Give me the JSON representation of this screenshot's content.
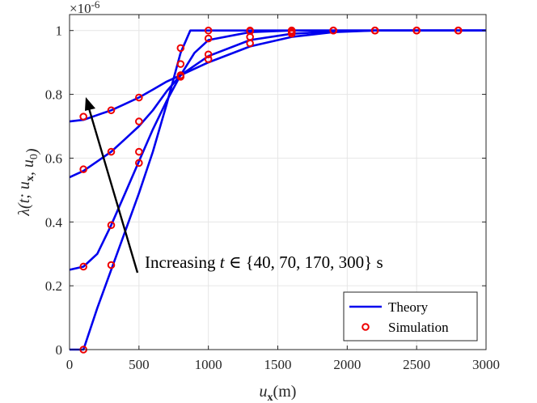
{
  "chart_data": {
    "type": "line",
    "title": "",
    "xlabel": "u_x(m)",
    "ylabel": "λ(t; u_x, u_0)",
    "xlim": [
      0,
      3000
    ],
    "ylim": [
      0,
      1.05
    ],
    "x_ticks": [
      0,
      500,
      1000,
      1500,
      2000,
      2500,
      3000
    ],
    "y_ticks": [
      0,
      0.2,
      0.4,
      0.6,
      0.8,
      1
    ],
    "y_exponent": "×10^-6",
    "grid": true,
    "legend_position": "bottom-right",
    "annotation": "Increasing t ∈ {40, 70, 170, 300} s",
    "colors": {
      "theory": "#0000ee",
      "simulation": "#ee0000",
      "arrow": "#000000",
      "grid": "#e6e6e6"
    },
    "series": [
      {
        "name": "Theory",
        "style": "line",
        "curves": [
          {
            "t": 40,
            "x": [
              0,
              100,
              200,
              300,
              400,
              500,
              600,
              700,
              800,
              870,
              1000,
              1500,
              2000,
              2500,
              3000
            ],
            "y": [
              0,
              0,
              0.13,
              0.25,
              0.37,
              0.49,
              0.62,
              0.77,
              0.93,
              1.0,
              1.0,
              1.0,
              1.0,
              1.0,
              1.0
            ]
          },
          {
            "t": 70,
            "x": [
              0,
              100,
              200,
              300,
              400,
              500,
              600,
              700,
              800,
              900,
              1000,
              1300,
              1600,
              2000,
              2500,
              3000
            ],
            "y": [
              0.25,
              0.26,
              0.3,
              0.39,
              0.49,
              0.59,
              0.69,
              0.78,
              0.86,
              0.93,
              0.97,
              0.995,
              1.0,
              1.0,
              1.0,
              1.0
            ]
          },
          {
            "t": 170,
            "x": [
              0,
              100,
              200,
              300,
              400,
              500,
              600,
              700,
              800,
              1000,
              1300,
              1600,
              1900,
              2200,
              3000
            ],
            "y": [
              0.54,
              0.56,
              0.59,
              0.62,
              0.66,
              0.7,
              0.75,
              0.81,
              0.86,
              0.92,
              0.97,
              0.99,
              0.997,
              1.0,
              1.0
            ]
          },
          {
            "t": 300,
            "x": [
              0,
              100,
              200,
              300,
              400,
              500,
              600,
              700,
              800,
              1000,
              1300,
              1600,
              1900,
              2200,
              2500,
              3000
            ],
            "y": [
              0.715,
              0.72,
              0.735,
              0.75,
              0.77,
              0.79,
              0.815,
              0.84,
              0.86,
              0.9,
              0.95,
              0.98,
              0.995,
              1.0,
              1.0,
              1.0
            ]
          }
        ]
      },
      {
        "name": "Simulation",
        "style": "marker",
        "curves": [
          {
            "t": 40,
            "x": [
              100,
              300,
              500,
              800,
              1000,
              1300,
              1600,
              1900,
              2200,
              2500,
              2800
            ],
            "y": [
              0,
              0.265,
              0.585,
              0.945,
              1.0,
              1.0,
              1.0,
              1.0,
              1.0,
              1.0,
              1.0
            ]
          },
          {
            "t": 70,
            "x": [
              100,
              300,
              500,
              800,
              1000,
              1300,
              1600,
              1900,
              2200,
              2500,
              2800
            ],
            "y": [
              0.26,
              0.39,
              0.62,
              0.895,
              0.975,
              0.998,
              1.0,
              1.0,
              1.0,
              1.0,
              1.0
            ]
          },
          {
            "t": 170,
            "x": [
              100,
              300,
              500,
              800,
              1000,
              1300,
              1600,
              1900,
              2200,
              2500,
              2800
            ],
            "y": [
              0.565,
              0.62,
              0.715,
              0.86,
              0.925,
              0.98,
              0.995,
              1.0,
              1.0,
              1.0,
              1.0
            ]
          },
          {
            "t": 300,
            "x": [
              100,
              300,
              500,
              800,
              1000,
              1300,
              1600,
              1900,
              2200,
              2500,
              2800
            ],
            "y": [
              0.73,
              0.75,
              0.79,
              0.855,
              0.91,
              0.96,
              0.99,
              1.0,
              1.0,
              1.0,
              1.0
            ]
          }
        ]
      }
    ]
  }
}
